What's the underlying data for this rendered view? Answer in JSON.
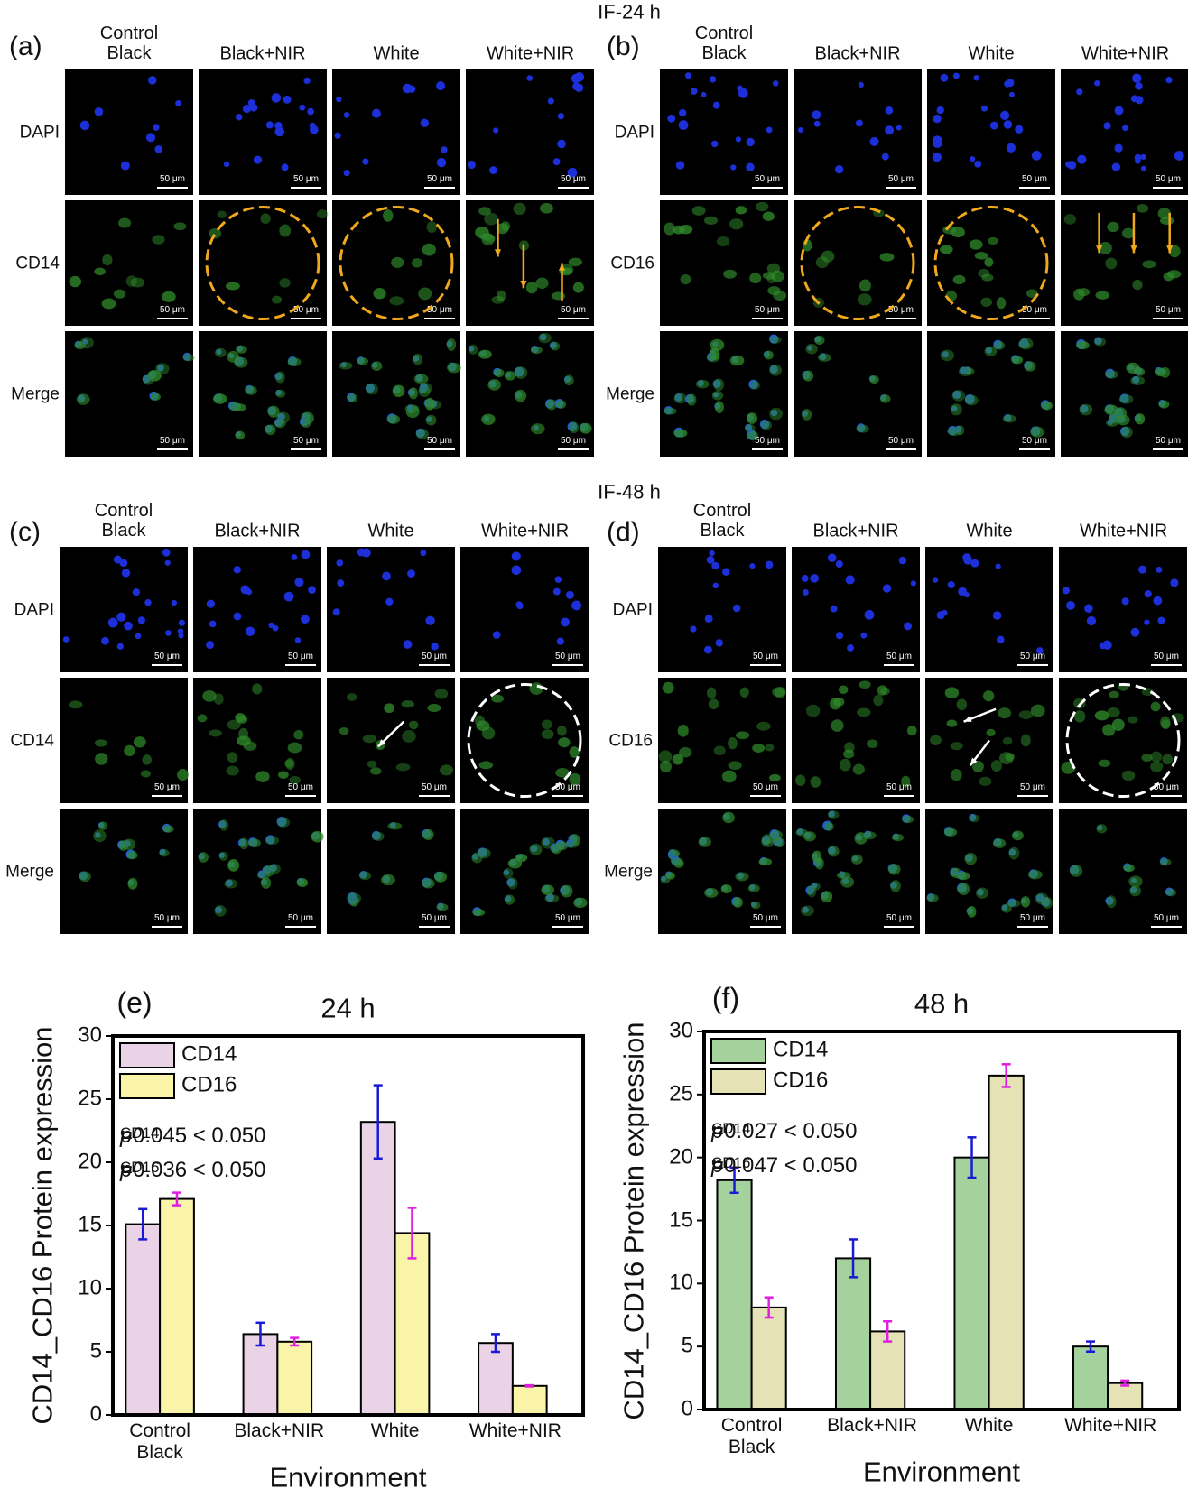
{
  "headers": {
    "top": "IF-24 h",
    "middle": "IF-48 h"
  },
  "scale_label": "50 μm",
  "panels": [
    {
      "label": "(a)",
      "columns": [
        "Control Black",
        "Black+NIR",
        "White",
        "White+NIR"
      ],
      "rows": [
        "DAPI",
        "CD14",
        "Merge"
      ]
    },
    {
      "label": "(b)",
      "columns": [
        "Control Black",
        "Black+NIR",
        "White",
        "White+NIR"
      ],
      "rows": [
        "DAPI",
        "CD16",
        "Merge"
      ]
    },
    {
      "label": "(c)",
      "columns": [
        "Control Black",
        "Black+NIR",
        "White",
        "White+NIR"
      ],
      "rows": [
        "DAPI",
        "CD14",
        "Merge"
      ]
    },
    {
      "label": "(d)",
      "columns": [
        "Control Black",
        "Black+NIR",
        "White",
        "White+NIR"
      ],
      "rows": [
        "DAPI",
        "CD16",
        "Merge"
      ]
    }
  ],
  "chart_data": [
    {
      "type": "bar",
      "panel_label": "(e)",
      "title": "24 h",
      "x_label": "Environment",
      "y_label": "CD14_CD16 Protein expression",
      "categories": [
        "Control Black",
        "Black+NIR",
        "White",
        "White+NIR"
      ],
      "series": [
        {
          "name": "CD14",
          "color": "#ead3e6",
          "error_color": "#1a1ad6",
          "values": [
            15.1,
            6.4,
            23.2,
            5.7
          ],
          "errors": [
            1.2,
            0.9,
            2.9,
            0.7
          ]
        },
        {
          "name": "CD16",
          "color": "#faf4a8",
          "error_color": "#e01ee0",
          "values": [
            17.1,
            5.8,
            14.4,
            2.3
          ],
          "errors": [
            0.5,
            0.3,
            2.0,
            0.05
          ]
        }
      ],
      "annotations": [
        {
          "symbol": "p",
          "subscript": "CD14",
          "text": "=0.045 < 0.050"
        },
        {
          "symbol": "p",
          "subscript": "CD16",
          "text": "=0.036 < 0.050"
        }
      ],
      "ylim": [
        0,
        30
      ],
      "yticks": [
        0,
        5,
        10,
        15,
        20,
        25,
        30
      ]
    },
    {
      "type": "bar",
      "panel_label": "(f)",
      "title": "48 h",
      "x_label": "Environment",
      "y_label": "CD14_CD16 Protein expression",
      "categories": [
        "Control Black",
        "Black+NIR",
        "White",
        "White+NIR"
      ],
      "series": [
        {
          "name": "CD14",
          "color": "#a5d19c",
          "error_color": "#1a1ad6",
          "values": [
            18.2,
            12.0,
            20.0,
            5.0
          ],
          "errors": [
            1.0,
            1.5,
            1.6,
            0.4
          ]
        },
        {
          "name": "CD16",
          "color": "#e5e2b6",
          "error_color": "#e01ee0",
          "values": [
            8.1,
            6.2,
            26.5,
            2.1
          ],
          "errors": [
            0.8,
            0.8,
            0.9,
            0.2
          ]
        }
      ],
      "annotations": [
        {
          "symbol": "p",
          "subscript": "CD14",
          "text": "=0.027 < 0.050"
        },
        {
          "symbol": "p",
          "subscript": "CD16",
          "text": "=0.047 < 0.050"
        }
      ],
      "ylim": [
        0,
        30
      ],
      "yticks": [
        0,
        5,
        10,
        15,
        20,
        25,
        30
      ]
    }
  ]
}
